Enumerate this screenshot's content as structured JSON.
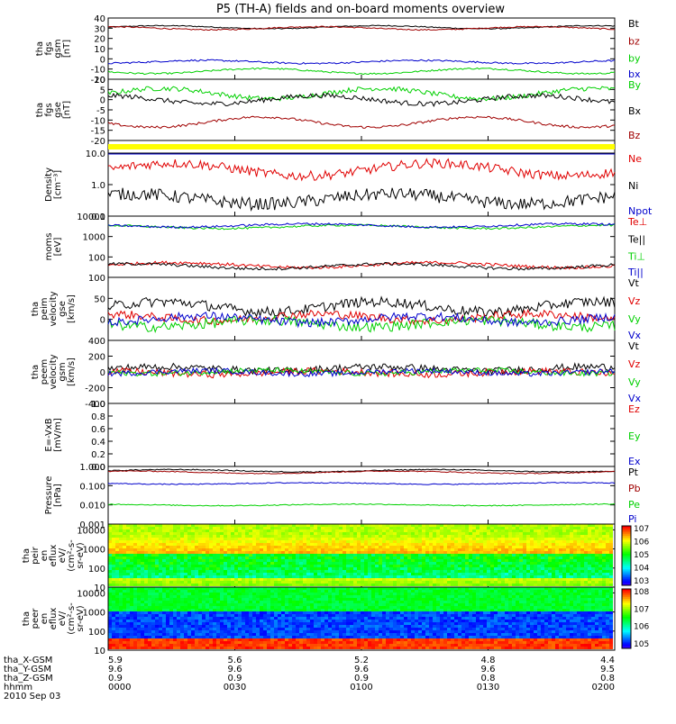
{
  "title": "P5 (TH-A) fields and on-board moments overview",
  "date": "2010 Sep 03",
  "colors": {
    "black": "#000000",
    "red": "#e00000",
    "darkred": "#a00000",
    "green": "#00d000",
    "blue": "#0000cc",
    "navy": "#00008b",
    "yellow": "#ffff00"
  },
  "chart_data": [
    {
      "type": "line",
      "ylabel": [
        "tha",
        "fgs",
        "gsm",
        "[nT]"
      ],
      "ylim": [
        -20,
        40
      ],
      "yscale": "linear",
      "yticks": [
        -20,
        -10,
        0,
        10,
        20,
        30,
        40
      ],
      "series": [
        {
          "name": "Bt",
          "color": "#000000",
          "base": 31,
          "amp": 1.5,
          "noise": 0.5
        },
        {
          "name": "bz",
          "color": "#a00000",
          "base": 30,
          "amp": 1.5,
          "noise": 0.6
        },
        {
          "name": "by",
          "color": "#00d000",
          "base": -12,
          "amp": 2.5,
          "noise": 0.8
        },
        {
          "name": "bx",
          "color": "#0000cc",
          "base": -3,
          "amp": 1.5,
          "noise": 0.8
        }
      ]
    },
    {
      "type": "line",
      "ylabel": [
        "tha",
        "fgs",
        "gse",
        "[nT]"
      ],
      "ylim": [
        -20,
        10
      ],
      "yscale": "linear",
      "yticks": [
        -20,
        -15,
        -10,
        -5,
        0,
        5,
        10
      ],
      "series": [
        {
          "name": "By",
          "color": "#00d000",
          "base": 3,
          "amp": 2.5,
          "noise": 1.2
        },
        {
          "name": "Bx",
          "color": "#000000",
          "base": 0,
          "amp": 2,
          "noise": 1.2
        },
        {
          "name": "Bz",
          "color": "#a00000",
          "base": -11,
          "amp": 2.5,
          "noise": 0.6
        }
      ]
    },
    {
      "type": "bar",
      "ylabel": [],
      "yscale": "flag",
      "series": [
        {
          "name": "",
          "color": "#ffff00"
        }
      ]
    },
    {
      "type": "line",
      "ylabel": [
        "Density",
        "[cm^-3]"
      ],
      "ylim": [
        0.1,
        10
      ],
      "yscale": "log",
      "yticks": [
        0.1,
        1.0,
        10.0
      ],
      "yticklabels": [
        "0.1",
        "1.0",
        "10.0"
      ],
      "series": [
        {
          "name": "Ne",
          "color": "#e00000",
          "base": 3,
          "amp": 0.5,
          "noise": 0.3
        },
        {
          "name": "Ni",
          "color": "#000000",
          "base": 0.35,
          "amp": 0.4,
          "noise": 0.4
        },
        {
          "name": "Npot",
          "color": "#0000cc",
          "base": 18,
          "amp": 0.3,
          "noise": 0.05
        }
      ]
    },
    {
      "type": "line",
      "ylabel": [
        "moms",
        "[eV]"
      ],
      "ylim": [
        10,
        10000
      ],
      "yscale": "log",
      "yticks": [
        10,
        100,
        1000,
        10000
      ],
      "yticklabels": [
        "",
        "100",
        "1000",
        "10000"
      ],
      "series": [
        {
          "name": "Te⊥",
          "color": "#e00000",
          "base": 40,
          "amp": 0.3,
          "noise": 0.15
        },
        {
          "name": "Te||",
          "color": "#000000",
          "base": 35,
          "amp": 0.3,
          "noise": 0.15
        },
        {
          "name": "Ti⊥",
          "color": "#00d000",
          "base": 3000,
          "amp": 0.2,
          "noise": 0.1
        },
        {
          "name": "Ti||",
          "color": "#0000cc",
          "base": 3500,
          "amp": 0.2,
          "noise": 0.1
        }
      ]
    },
    {
      "type": "line",
      "ylabel": [
        "tha",
        "peim",
        "velocity",
        "gse",
        "[km/s]"
      ],
      "ylim": [
        -50,
        100
      ],
      "yscale": "linear",
      "yticks": [
        -50,
        0,
        50,
        100
      ],
      "yticklabels": [
        "",
        "0",
        "50",
        "100"
      ],
      "series": [
        {
          "name": "Vt",
          "color": "#000000",
          "base": 30,
          "amp": 12,
          "noise": 12
        },
        {
          "name": "Vz",
          "color": "#e00000",
          "base": 5,
          "amp": 8,
          "noise": 10
        },
        {
          "name": "Vy",
          "color": "#00d000",
          "base": -10,
          "amp": 8,
          "noise": 12
        },
        {
          "name": "Vx",
          "color": "#0000cc",
          "base": 0,
          "amp": 8,
          "noise": 10
        }
      ]
    },
    {
      "type": "line",
      "ylabel": [
        "tha",
        "peem",
        "velocity",
        "gsm",
        "[km/s]"
      ],
      "ylim": [
        -400,
        400
      ],
      "yscale": "linear",
      "yticks": [
        -400,
        -200,
        0,
        200,
        400
      ],
      "series": [
        {
          "name": "Vt",
          "color": "#000000",
          "base": 40,
          "amp": 25,
          "noise": 45
        },
        {
          "name": "Vz",
          "color": "#e00000",
          "base": -10,
          "amp": 20,
          "noise": 45
        },
        {
          "name": "Vy",
          "color": "#00d000",
          "base": 0,
          "amp": 20,
          "noise": 35
        },
        {
          "name": "Vx",
          "color": "#0000cc",
          "base": -5,
          "amp": 20,
          "noise": 35
        }
      ]
    },
    {
      "type": "line",
      "ylabel": [
        "E=-VxB",
        "[mV/m]"
      ],
      "ylim": [
        0,
        1
      ],
      "yscale": "linear",
      "yticks": [
        0.0,
        0.2,
        0.4,
        0.6,
        0.8,
        1.0
      ],
      "yticklabels": [
        "0.0",
        "0.2",
        "0.4",
        "0.6",
        "0.8",
        "1.0"
      ],
      "series": [
        {
          "name": "Ez",
          "color": "#e00000",
          "empty": true
        },
        {
          "name": "Ey",
          "color": "#00d000",
          "empty": true
        },
        {
          "name": "Ex",
          "color": "#0000cc",
          "empty": true
        }
      ]
    },
    {
      "type": "line",
      "ylabel": [
        "Pressure",
        "[nPa]"
      ],
      "ylim": [
        0.001,
        1.0
      ],
      "yscale": "log",
      "yticks": [
        0.001,
        0.01,
        0.1,
        1.0
      ],
      "yticklabels": [
        "0.001",
        "0.010",
        "0.100",
        "1.000"
      ],
      "series": [
        {
          "name": "Pt",
          "color": "#000000",
          "base": 0.6,
          "amp": 0.15,
          "noise": 0.05
        },
        {
          "name": "Pb",
          "color": "#a00000",
          "base": 0.5,
          "amp": 0.15,
          "noise": 0.05
        },
        {
          "name": "Pe",
          "color": "#00d000",
          "base": 0.01,
          "amp": 0.1,
          "noise": 0.05
        },
        {
          "name": "Pi",
          "color": "#0000cc",
          "base": 0.13,
          "amp": 0.1,
          "noise": 0.05
        }
      ]
    },
    {
      "type": "heatmap",
      "ylabel": [
        "tha",
        "peir",
        "en",
        "eflux",
        "eV/",
        "(cm^2-s-",
        "sr-eV)"
      ],
      "ylim": [
        10,
        20000
      ],
      "yscale": "log",
      "yticks": [
        10,
        100,
        1000,
        10000
      ],
      "yticklabels": [
        "10",
        "100",
        "1000",
        "10000"
      ],
      "colorbar": {
        "min_exp": 3,
        "max_exp": 7,
        "labels": [
          "10^7",
          "10^6",
          "10^5",
          "10^4",
          "10^3"
        ]
      }
    },
    {
      "type": "heatmap",
      "ylabel": [
        "tha",
        "peer",
        "en",
        "eflux",
        "eV/",
        "(cm^2-s-",
        "sr-eV)"
      ],
      "ylim": [
        10,
        20000
      ],
      "yscale": "log",
      "yticks": [
        10,
        100,
        1000,
        10000
      ],
      "yticklabels": [
        "10",
        "100",
        "1000",
        "10000"
      ],
      "colorbar": {
        "min_exp": 4,
        "max_exp": 8,
        "labels": [
          "10^8",
          "10^7",
          "10^6",
          "10^5"
        ]
      }
    }
  ],
  "xaxis": {
    "row_labels": [
      "tha_X-GSM",
      "tha_Y-GSM",
      "tha_Z-GSM",
      "hhmm"
    ],
    "ticks": [
      {
        "values": [
          "5.9",
          "9.6",
          "0.9",
          "0000"
        ]
      },
      {
        "values": [
          "5.6",
          "9.6",
          "0.9",
          "0030"
        ]
      },
      {
        "values": [
          "5.2",
          "9.6",
          "0.9",
          "0100"
        ]
      },
      {
        "values": [
          "4.8",
          "9.6",
          "0.8",
          "0130"
        ]
      },
      {
        "values": [
          "4.4",
          "9.5",
          "0.8",
          "0200"
        ]
      }
    ]
  }
}
